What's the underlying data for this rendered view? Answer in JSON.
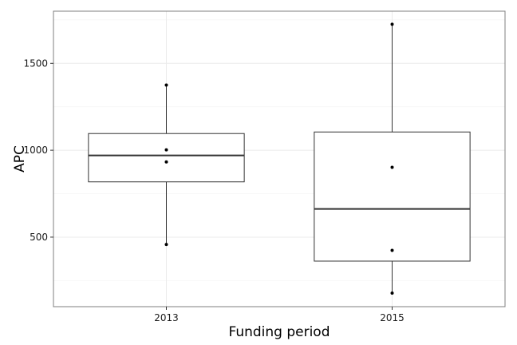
{
  "chart_data": {
    "type": "boxplot",
    "xlabel": "Funding period",
    "ylabel": "APC",
    "categories": [
      "2013",
      "2015"
    ],
    "ylim": [
      100,
      1800
    ],
    "yticks": [
      500,
      1000,
      1500
    ],
    "yticks_minor": [
      250,
      750,
      1250,
      1750
    ],
    "grid": true,
    "boxes": [
      {
        "category": "2013",
        "whisker_low": 458,
        "q1": 818,
        "median": 970,
        "q3": 1096,
        "whisker_high": 1375,
        "points": [
          458,
          933,
          1002,
          1375
        ]
      },
      {
        "category": "2015",
        "whisker_low": 178,
        "q1": 362,
        "median": 662,
        "q3": 1105,
        "whisker_high": 1725,
        "points": [
          178,
          424,
          902,
          1725
        ]
      }
    ],
    "colors": {
      "panel_border": "#7f7f7f",
      "grid_major": "#ebebeb",
      "grid_minor": "#f5f5f5",
      "box": "#333333",
      "point": "#000000"
    }
  }
}
